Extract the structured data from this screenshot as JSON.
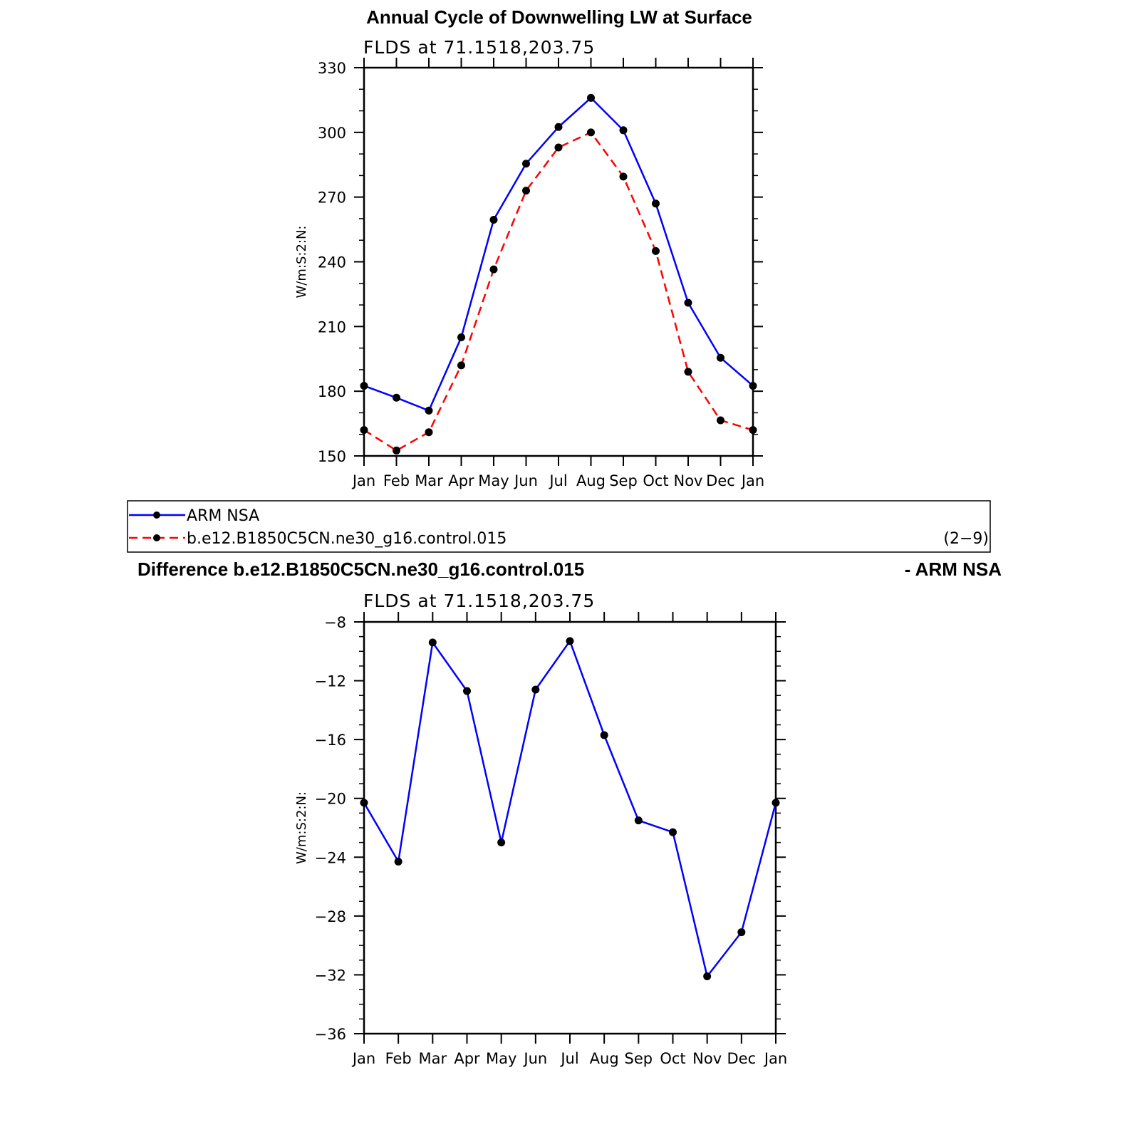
{
  "chart_data": [
    {
      "type": "line",
      "title": "Annual Cycle of Downwelling LW at Surface",
      "subtitle": "FLDS at 71.1518,203.75",
      "ylabel": "W/m:S:2:N:",
      "xlabel": "",
      "categories": [
        "Jan",
        "Feb",
        "Mar",
        "Apr",
        "May",
        "Jun",
        "Jul",
        "Aug",
        "Sep",
        "Oct",
        "Nov",
        "Dec",
        "Jan"
      ],
      "ylim": [
        150,
        330
      ],
      "yticks": [
        "150",
        "180",
        "210",
        "240",
        "270",
        "300",
        "330"
      ],
      "series": [
        {
          "name": "ARM NSA",
          "color": "#0000ff",
          "dash": "solid",
          "values": [
            182.5,
            177,
            171,
            205,
            259.5,
            285.5,
            302.5,
            316,
            301,
            267,
            221,
            195.5,
            182.5
          ]
        },
        {
          "name": "b.e12.B1850C5CN.ne30_g16.control.015",
          "color": "#ff0000",
          "dash": "dashed",
          "values": [
            162,
            152.5,
            161,
            192,
            236.5,
            273,
            293,
            300,
            279.5,
            245,
            189,
            166.5,
            162
          ]
        }
      ],
      "legend": {
        "position": "bottom",
        "page_label": "(2−9)"
      }
    },
    {
      "type": "line",
      "title_left": "Difference b.e12.B1850C5CN.ne30_g16.control.015",
      "title_right": "- ARM NSA",
      "subtitle": "FLDS at 71.1518,203.75",
      "ylabel": "W/m:S:2:N:",
      "xlabel": "",
      "categories": [
        "Jan",
        "Feb",
        "Mar",
        "Apr",
        "May",
        "Jun",
        "Jul",
        "Aug",
        "Sep",
        "Oct",
        "Nov",
        "Dec",
        "Jan"
      ],
      "ylim": [
        -36,
        -8
      ],
      "yticks": [
        "−36",
        "−32",
        "−28",
        "−24",
        "−20",
        "−16",
        "−12",
        "−8"
      ],
      "series": [
        {
          "color": "#0000ff",
          "dash": "solid",
          "values": [
            -20.3,
            -24.3,
            -9.4,
            -12.7,
            -23.0,
            -12.6,
            -9.3,
            -15.7,
            -21.5,
            -22.3,
            -32.1,
            -29.1,
            -20.3
          ]
        }
      ]
    }
  ]
}
